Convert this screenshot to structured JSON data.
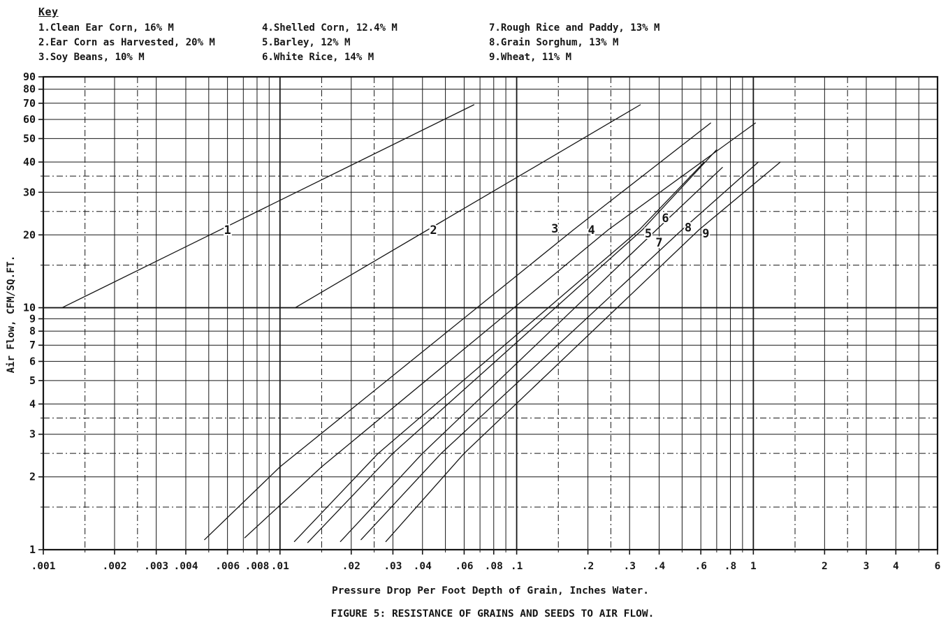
{
  "colors": {
    "ink": "#161616",
    "paper": "#ffffff"
  },
  "key": {
    "title": "Key",
    "columns": [
      [
        "1.Clean Ear Corn, 16% M",
        "2.Ear Corn as Harvested, 20% M",
        "3.Soy Beans, 10% M"
      ],
      [
        "4.Shelled Corn, 12.4% M",
        "5.Barley, 12% M",
        "6.White Rice, 14% M"
      ],
      [
        "7.Rough Rice and Paddy, 13% M",
        "8.Grain Sorghum, 13% M",
        "9.Wheat, 11% M"
      ]
    ]
  },
  "caption": "FIGURE 5: RESISTANCE OF GRAINS AND SEEDS TO AIR FLOW.",
  "chart_data": {
    "type": "line",
    "title": "FIGURE 5: RESISTANCE OF GRAINS AND SEEDS TO AIR FLOW.",
    "xlabel": "Pressure Drop Per Foot Depth of Grain, Inches Water.",
    "ylabel": "Air Flow, CFM/SQ.FT.",
    "x_scale": "log",
    "y_scale": "log",
    "xlim": [
      0.001,
      6
    ],
    "ylim": [
      1,
      90
    ],
    "grid": {
      "x_decades": [
        0.001,
        0.01,
        0.1,
        1
      ],
      "x_multiples": [
        1,
        1.5,
        2,
        2.5,
        3,
        4,
        5,
        6,
        7,
        8,
        9
      ],
      "y_decades": [
        1,
        10
      ],
      "y_multiples": [
        1,
        1.5,
        2,
        2.5,
        3,
        3.5,
        4,
        5,
        6,
        7,
        8,
        9
      ],
      "dashed_multiples": [
        1.5,
        2.5,
        3.5
      ]
    },
    "x_ticks": {
      "values": [
        0.001,
        0.002,
        0.003,
        0.004,
        0.006,
        0.008,
        0.01,
        0.02,
        0.03,
        0.04,
        0.06,
        0.08,
        0.1,
        0.2,
        0.3,
        0.4,
        0.6,
        0.8,
        1,
        2,
        3,
        4,
        6
      ],
      "labels": [
        ".001",
        ".002",
        ".003",
        ".004",
        ".006",
        ".008",
        ".01",
        ".02",
        ".03",
        ".04",
        ".06",
        ".08",
        ".1",
        ".2",
        ".3",
        ".4",
        ".6",
        ".8",
        "1",
        "2",
        "3",
        "4",
        "6"
      ]
    },
    "y_ticks": {
      "values": [
        1,
        2,
        3,
        4,
        5,
        6,
        7,
        8,
        9,
        10,
        20,
        30,
        40,
        50,
        60,
        70,
        80,
        90
      ],
      "labels": [
        "1",
        "2",
        "3",
        "4",
        "5",
        "6",
        "7",
        "8",
        "9",
        "10",
        "20",
        "30",
        "40",
        "50",
        "60",
        "70",
        "80",
        "90"
      ]
    },
    "series": [
      {
        "id": "1",
        "name": "Clean Ear Corn, 16% M",
        "points": [
          [
            0.0012,
            10
          ],
          [
            0.066,
            69
          ]
        ],
        "label_xy": [
          0.006,
          21
        ]
      },
      {
        "id": "2",
        "name": "Ear Corn as Harvested, 20% M",
        "points": [
          [
            0.0116,
            10
          ],
          [
            0.333,
            69
          ]
        ],
        "label_xy": [
          0.0445,
          21
        ]
      },
      {
        "id": "3",
        "name": "Soy Beans, 10% M",
        "points": [
          [
            0.0048,
            1.1
          ],
          [
            0.01,
            2.2
          ],
          [
            0.174,
            21
          ],
          [
            0.66,
            58
          ]
        ],
        "label_xy": [
          0.145,
          21.3
        ]
      },
      {
        "id": "4",
        "name": "Shelled Corn, 12.4% M",
        "points": [
          [
            0.0071,
            1.12
          ],
          [
            0.015,
            2.2
          ],
          [
            0.244,
            21
          ],
          [
            1.02,
            58
          ]
        ],
        "label_xy": [
          0.207,
          21
        ]
      },
      {
        "id": "5",
        "name": "Barley, 12% M",
        "points": [
          [
            0.0115,
            1.08
          ],
          [
            0.026,
            2.5
          ],
          [
            0.33,
            21
          ],
          [
            0.62,
            40
          ]
        ],
        "label_xy": [
          0.36,
          20.3
        ]
      },
      {
        "id": "6",
        "name": "White Rice, 14% M",
        "points": [
          [
            0.0131,
            1.07
          ],
          [
            0.03,
            2.5
          ],
          [
            0.34,
            21
          ],
          [
            0.7,
            45
          ]
        ],
        "label_xy": [
          0.425,
          23.5
        ]
      },
      {
        "id": "7",
        "name": "Rough Rice and Paddy, 13% M",
        "points": [
          [
            0.018,
            1.08
          ],
          [
            0.04,
            2.5
          ],
          [
            0.39,
            21
          ],
          [
            0.74,
            38
          ]
        ],
        "label_xy": [
          0.4,
          18.6
        ]
      },
      {
        "id": "8",
        "name": "Grain Sorghum, 13% M",
        "points": [
          [
            0.022,
            1.1
          ],
          [
            0.048,
            2.5
          ],
          [
            0.5,
            21
          ],
          [
            1.05,
            40
          ]
        ],
        "label_xy": [
          0.53,
          21.5
        ]
      },
      {
        "id": "9",
        "name": "Wheat, 11% M",
        "points": [
          [
            0.028,
            1.08
          ],
          [
            0.06,
            2.5
          ],
          [
            0.59,
            21
          ],
          [
            1.3,
            40
          ]
        ],
        "label_xy": [
          0.63,
          20.3
        ]
      }
    ]
  }
}
